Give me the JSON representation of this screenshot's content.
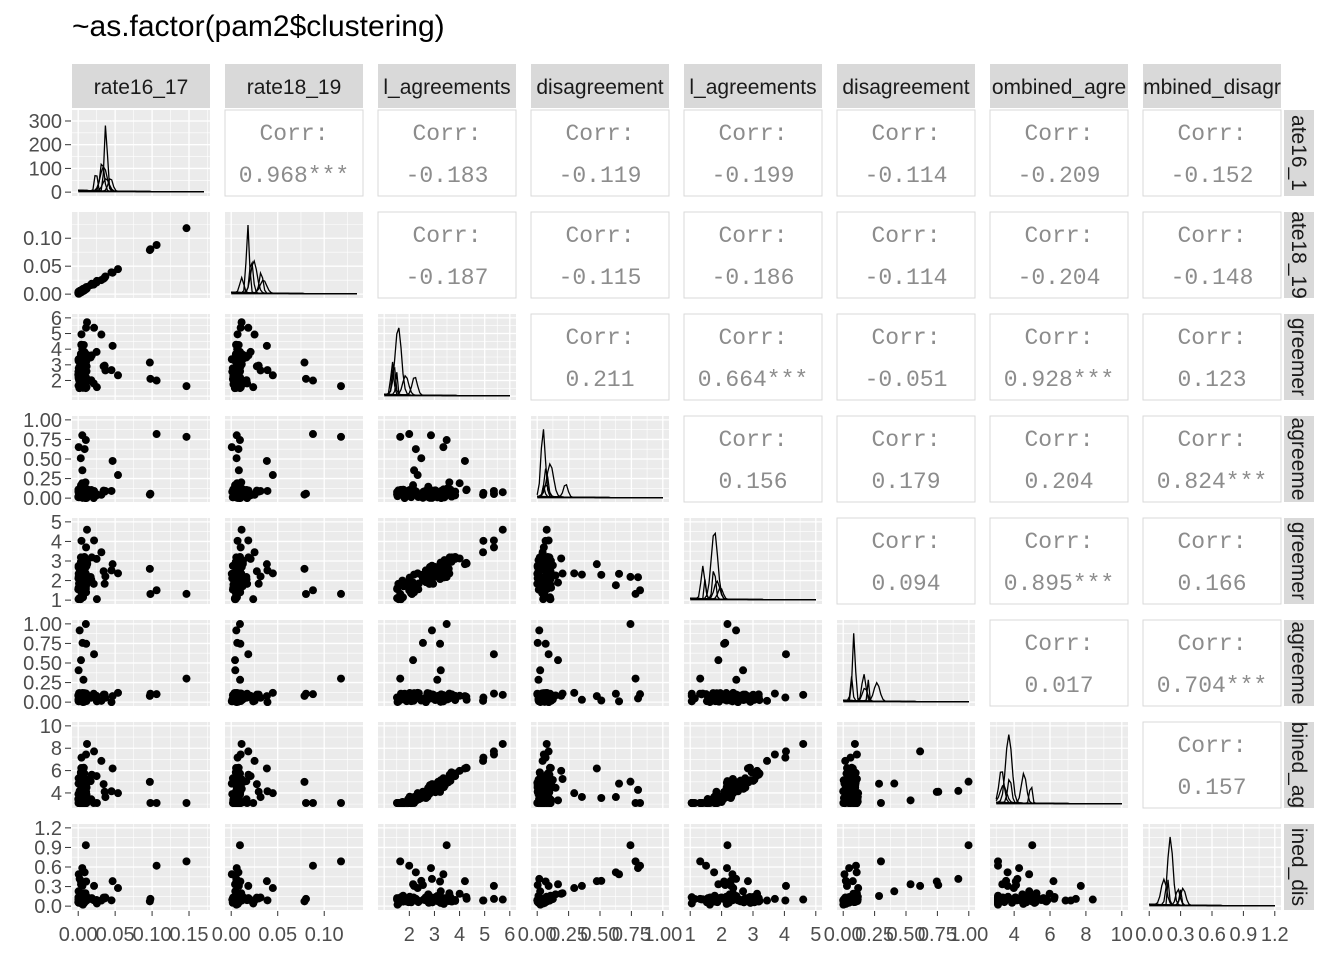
{
  "title": "~as.factor(pam2$clustering)",
  "chart_data": {
    "type": "scatter-matrix",
    "variables": [
      "rate16_17",
      "rate18_19",
      "l_agreements",
      "l_disagreements",
      "l_agreements",
      "l_disagreements",
      "ombined_agre",
      "mbined_disagr"
    ],
    "row_labels": [
      "ate16_1",
      "ate18_19",
      "greemer",
      "agreeme",
      "greemer",
      "agreeme",
      "bined_ag",
      "ined_dis"
    ],
    "column_labels": [
      "rate16_17",
      "rate18_19",
      "l_agreements",
      "disagreement",
      "l_agreements",
      "disagreement",
      "ombined_agre",
      "mbined_disagr"
    ],
    "correlations": [
      {
        "row": 0,
        "col": 1,
        "label": "Corr:",
        "value": "0.968***"
      },
      {
        "row": 0,
        "col": 2,
        "label": "Corr:",
        "value": "-0.183"
      },
      {
        "row": 0,
        "col": 3,
        "label": "Corr:",
        "value": "-0.119"
      },
      {
        "row": 0,
        "col": 4,
        "label": "Corr:",
        "value": "-0.199"
      },
      {
        "row": 0,
        "col": 5,
        "label": "Corr:",
        "value": "-0.114"
      },
      {
        "row": 0,
        "col": 6,
        "label": "Corr:",
        "value": "-0.209"
      },
      {
        "row": 0,
        "col": 7,
        "label": "Corr:",
        "value": "-0.152"
      },
      {
        "row": 1,
        "col": 2,
        "label": "Corr:",
        "value": "-0.187"
      },
      {
        "row": 1,
        "col": 3,
        "label": "Corr:",
        "value": "-0.115"
      },
      {
        "row": 1,
        "col": 4,
        "label": "Corr:",
        "value": "-0.186"
      },
      {
        "row": 1,
        "col": 5,
        "label": "Corr:",
        "value": "-0.114"
      },
      {
        "row": 1,
        "col": 6,
        "label": "Corr:",
        "value": "-0.204"
      },
      {
        "row": 1,
        "col": 7,
        "label": "Corr:",
        "value": "-0.148"
      },
      {
        "row": 2,
        "col": 3,
        "label": "Corr:",
        "value": "0.211"
      },
      {
        "row": 2,
        "col": 4,
        "label": "Corr:",
        "value": "0.664***"
      },
      {
        "row": 2,
        "col": 5,
        "label": "Corr:",
        "value": "-0.051"
      },
      {
        "row": 2,
        "col": 6,
        "label": "Corr:",
        "value": "0.928***"
      },
      {
        "row": 2,
        "col": 7,
        "label": "Corr:",
        "value": "0.123"
      },
      {
        "row": 3,
        "col": 4,
        "label": "Corr:",
        "value": "0.156"
      },
      {
        "row": 3,
        "col": 5,
        "label": "Corr:",
        "value": "0.179"
      },
      {
        "row": 3,
        "col": 6,
        "label": "Corr:",
        "value": "0.204"
      },
      {
        "row": 3,
        "col": 7,
        "label": "Corr:",
        "value": "0.824***"
      },
      {
        "row": 4,
        "col": 5,
        "label": "Corr:",
        "value": "0.094"
      },
      {
        "row": 4,
        "col": 6,
        "label": "Corr:",
        "value": "0.895***"
      },
      {
        "row": 4,
        "col": 7,
        "label": "Corr:",
        "value": "0.166"
      },
      {
        "row": 5,
        "col": 6,
        "label": "Corr:",
        "value": "0.017"
      },
      {
        "row": 5,
        "col": 7,
        "label": "Corr:",
        "value": "0.704***"
      },
      {
        "row": 6,
        "col": 7,
        "label": "Corr:",
        "value": "0.157"
      }
    ],
    "row_axes": [
      {
        "range": [
          0,
          330
        ],
        "ticks": [
          0,
          100,
          200,
          300
        ],
        "tick_labels": [
          "0",
          "100",
          "200",
          "300"
        ]
      },
      {
        "range": [
          0,
          0.14
        ],
        "ticks": [
          0,
          0.05,
          0.1
        ],
        "tick_labels": [
          "0.00",
          "0.05",
          "0.10"
        ]
      },
      {
        "range": [
          1,
          6
        ],
        "ticks": [
          2,
          3,
          4,
          5,
          6
        ],
        "tick_labels": [
          "2",
          "3",
          "4",
          "5",
          "6"
        ]
      },
      {
        "range": [
          0,
          1
        ],
        "ticks": [
          0,
          0.25,
          0.5,
          0.75,
          1
        ],
        "tick_labels": [
          "0.00",
          "0.25",
          "0.50",
          "0.75",
          "1.00"
        ]
      },
      {
        "range": [
          1,
          5
        ],
        "ticks": [
          1,
          2,
          3,
          4,
          5
        ],
        "tick_labels": [
          "1",
          "2",
          "3",
          "4",
          "5"
        ]
      },
      {
        "range": [
          0,
          1
        ],
        "ticks": [
          0,
          0.25,
          0.5,
          0.75,
          1
        ],
        "tick_labels": [
          "0.00",
          "0.25",
          "0.50",
          "0.75",
          "1.00"
        ]
      },
      {
        "range": [
          3,
          10
        ],
        "ticks": [
          4,
          6,
          8,
          10
        ],
        "tick_labels": [
          "4",
          "6",
          "8",
          "10"
        ]
      },
      {
        "range": [
          0,
          1.2
        ],
        "ticks": [
          0,
          0.3,
          0.6,
          0.9,
          1.2
        ],
        "tick_labels": [
          "0.0",
          "0.3",
          "0.6",
          "0.9",
          "1.2"
        ]
      }
    ],
    "col_axes": [
      {
        "range": [
          0,
          0.17
        ],
        "ticks": [
          0,
          0.05,
          0.1,
          0.15
        ],
        "tick_labels": [
          "0.00",
          "0.05",
          "0.10",
          "0.15"
        ]
      },
      {
        "range": [
          0,
          0.135
        ],
        "ticks": [
          0,
          0.05,
          0.1
        ],
        "tick_labels": [
          "0.00",
          "0.05",
          "0.10"
        ]
      },
      {
        "range": [
          1,
          6
        ],
        "ticks": [
          2,
          3,
          4,
          5,
          6
        ],
        "tick_labels": [
          "2",
          "3",
          "4",
          "5",
          "6"
        ]
      },
      {
        "range": [
          0,
          1
        ],
        "ticks": [
          0,
          0.25,
          0.5,
          0.75,
          1
        ],
        "tick_labels": [
          "0.00",
          "0.25",
          "0.50",
          "0.75",
          "1.00"
        ]
      },
      {
        "range": [
          1,
          5
        ],
        "ticks": [
          1,
          2,
          3,
          4,
          5
        ],
        "tick_labels": [
          "1",
          "2",
          "3",
          "4",
          "5"
        ]
      },
      {
        "range": [
          0,
          1
        ],
        "ticks": [
          0,
          0.25,
          0.5,
          0.75,
          1
        ],
        "tick_labels": [
          "0.00",
          "0.25",
          "0.50",
          "0.75",
          "1.00"
        ]
      },
      {
        "range": [
          3,
          10
        ],
        "ticks": [
          4,
          6,
          8,
          10
        ],
        "tick_labels": [
          "4",
          "6",
          "8",
          "10"
        ]
      },
      {
        "range": [
          0,
          1.2
        ],
        "ticks": [
          0,
          0.3,
          0.6,
          0.9,
          1.2
        ],
        "tick_labels": [
          "0.0",
          "0.3",
          "0.6",
          "0.9",
          "1.2"
        ]
      }
    ],
    "grid": true,
    "colors": {
      "panel": "#ebebeb",
      "strip": "#d9d9d9",
      "point": "#000000",
      "corr_text": "#8c8c8c",
      "text": "#000000",
      "axis_text": "#4d4d4d"
    }
  }
}
